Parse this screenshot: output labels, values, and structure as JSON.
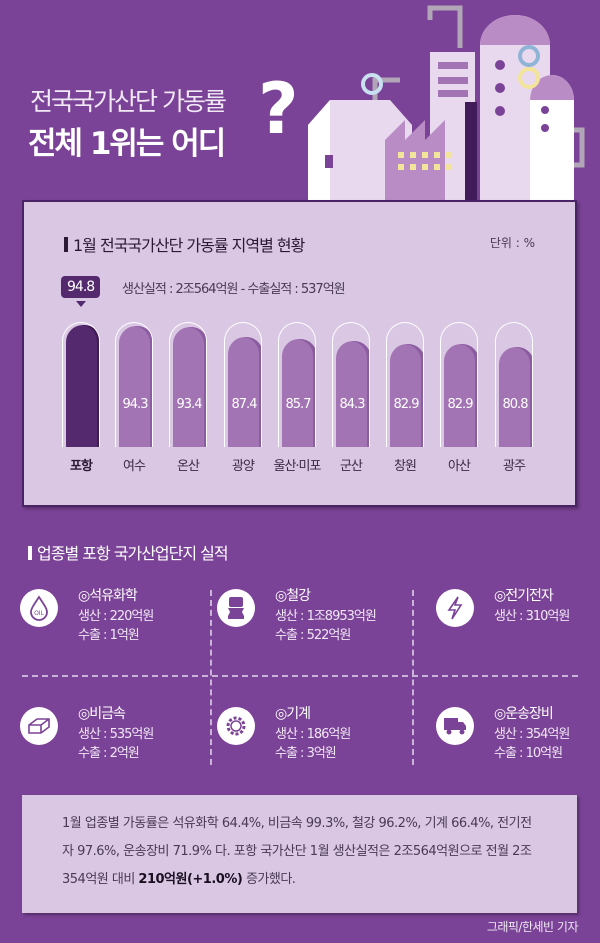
{
  "header": {
    "title_line1": "전국국가산단 가동률",
    "title_line2": "전체 1위는 어디",
    "question_mark": "?"
  },
  "chart_data": {
    "type": "bar",
    "title": "1월 전국국가산단 가동률 지역별 현황",
    "unit": "단위 : %",
    "categories": [
      "포항",
      "여수",
      "온산",
      "광양",
      "울산·미포",
      "군산",
      "창원",
      "아산",
      "광주"
    ],
    "values": [
      94.8,
      94.3,
      93.4,
      87.4,
      85.7,
      84.3,
      82.9,
      82.9,
      80.8
    ],
    "value_labels": [
      "94.8",
      "94.3",
      "93.4",
      "87.4",
      "85.7",
      "84.3",
      "82.9",
      "82.9",
      "80.8"
    ],
    "highlight": "포항",
    "highlight_note": "생산실적 : 2조564억원 - 수출실적 : 537억원",
    "colors": {
      "highlight": "#55296e",
      "bar": "#a374b4"
    }
  },
  "industries": {
    "title": "업종별 포항 국가산업단지 실적",
    "items": [
      {
        "name": "◎석유화학",
        "icon": "oil-drop-icon",
        "lines": [
          "생산 : 220억원",
          "수출 : 1억원"
        ]
      },
      {
        "name": "◎철강",
        "icon": "steel-coil-icon",
        "lines": [
          "생산 : 1조8953억원",
          "수출 : 522억원"
        ]
      },
      {
        "name": "◎전기전자",
        "icon": "lightning-icon",
        "lines": [
          "생산 : 310억원"
        ]
      },
      {
        "name": "◎비금속",
        "icon": "block-icon",
        "lines": [
          "생산 : 535억원",
          "수출 : 2억원"
        ]
      },
      {
        "name": "◎기계",
        "icon": "gear-icon",
        "lines": [
          "생산 : 186억원",
          "수출 : 3억원"
        ]
      },
      {
        "name": "◎운송장비",
        "icon": "truck-icon",
        "lines": [
          "생산 : 354억원",
          "수출 : 10억원"
        ]
      }
    ]
  },
  "summary": {
    "text_before": "1월 업종별 가동률은 석유화학 64.4%, 비금속 99.3%, 철강 96.2%, 기계 66.4%, 전기전자 97.6%, 운송장비 71.9% 다. 포항 국가산단 1월 생산실적은 2조564억원으로 전월 2조354억원 대비 ",
    "bold": "210억원(+1.0%)",
    "text_after": " 증가했다."
  },
  "credit": "그래픽/한세빈 기자",
  "colors": {
    "background": "#7b4397",
    "panel": "#d9c7e3"
  }
}
